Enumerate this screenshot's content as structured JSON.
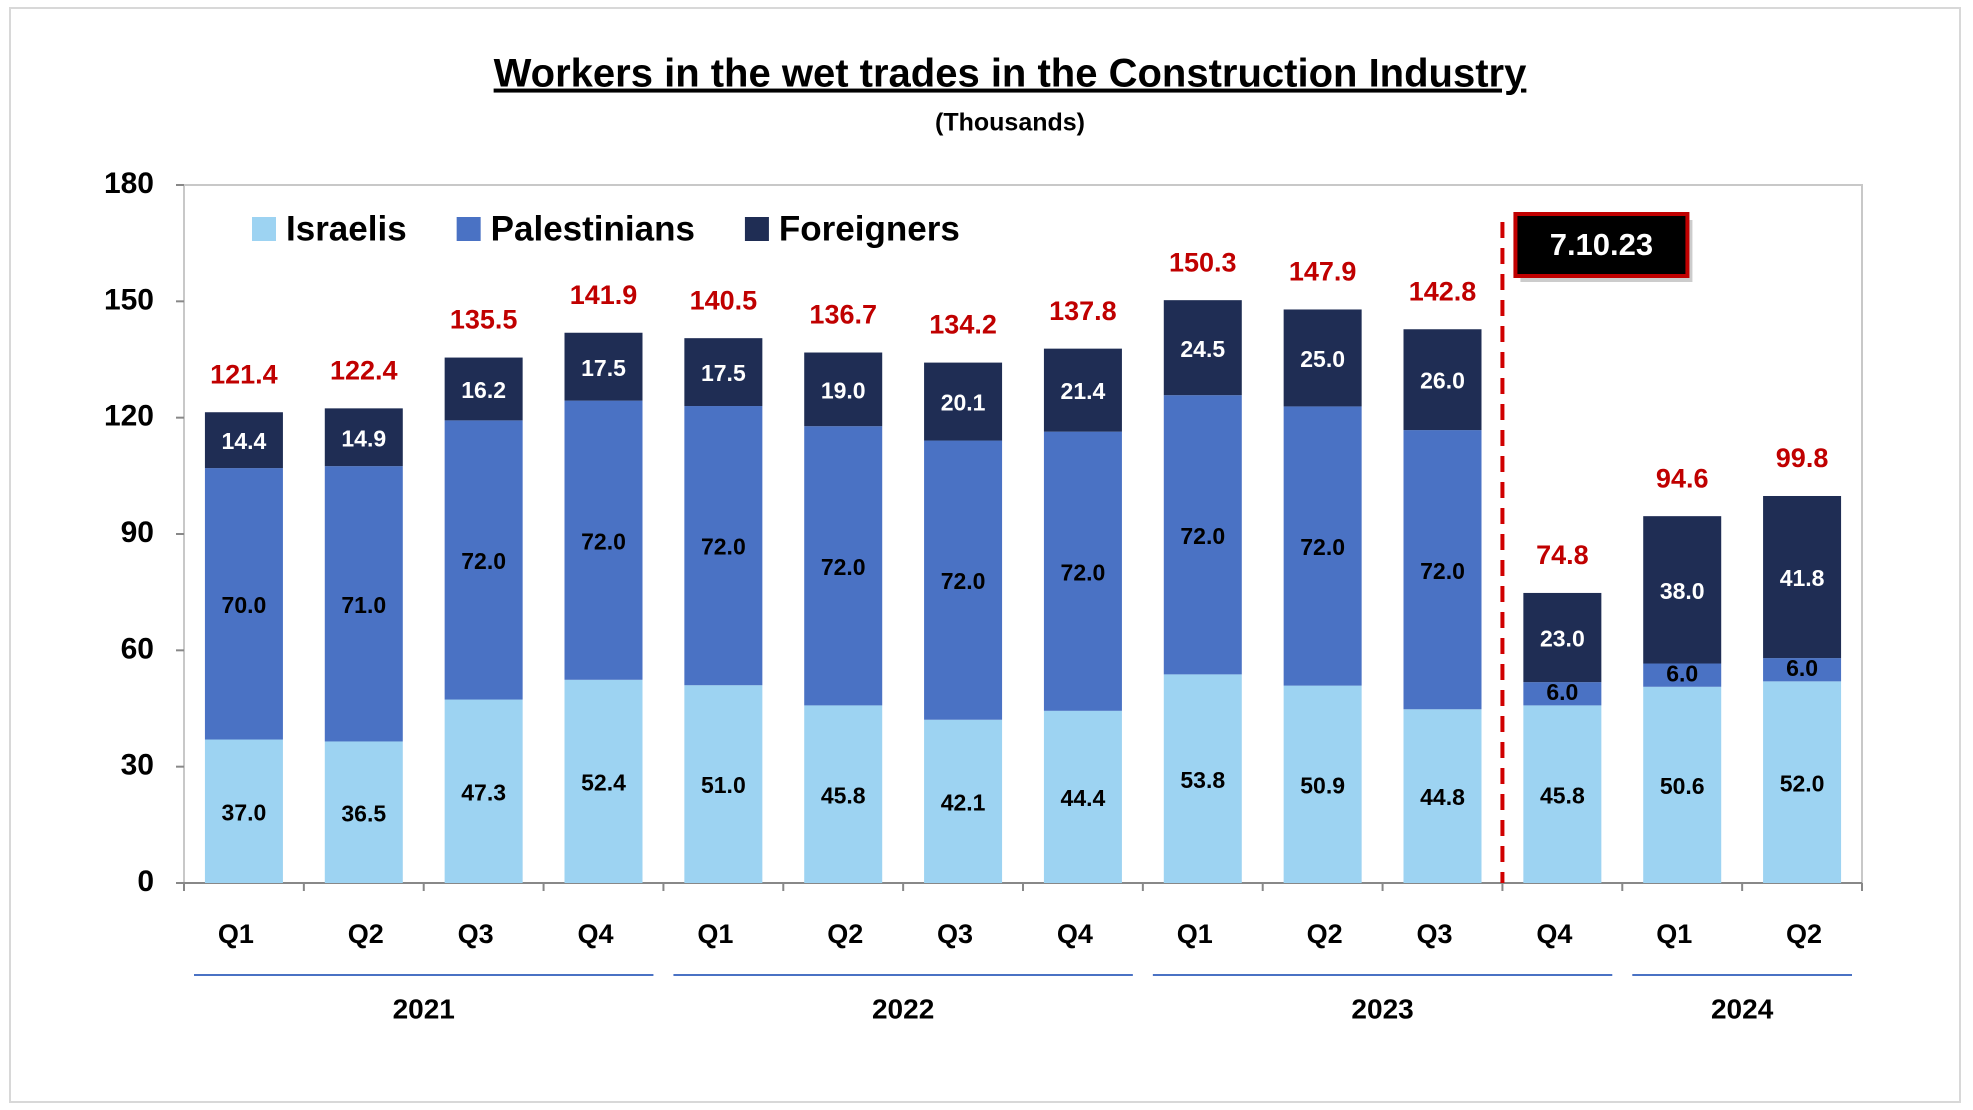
{
  "chart_data": {
    "type": "stacked_bar",
    "title": "Workers in the wet trades in the Construction Industry",
    "subtitle": "(Thousands)",
    "categories": [
      "Q1",
      "Q2",
      "Q3",
      "Q4",
      "Q1",
      "Q2",
      "Q3",
      "Q4",
      "Q1",
      "Q2",
      "Q3",
      "Q4",
      "Q1",
      "Q2"
    ],
    "groups": [
      {
        "label": "2021",
        "count": 4
      },
      {
        "label": "2022",
        "count": 4
      },
      {
        "label": "2023",
        "count": 4
      },
      {
        "label": "2024",
        "count": 2
      }
    ],
    "series": [
      {
        "name": "Israelis",
        "color": "#9dd3f2",
        "values": [
          37.0,
          36.5,
          47.3,
          52.4,
          51.0,
          45.8,
          42.1,
          44.4,
          53.8,
          50.9,
          44.8,
          45.8,
          50.6,
          52.0
        ],
        "value_labels": [
          "37.0",
          "36.5",
          "47.3",
          "52.4",
          "51.0",
          "45.8",
          "42.1",
          "44.4",
          "53.8",
          "50.9",
          "44.8",
          "45.8",
          "50.6",
          "52.0"
        ]
      },
      {
        "name": "Palestinians",
        "color": "#4a72c4",
        "values": [
          70.0,
          71.0,
          72.0,
          72.0,
          72.0,
          72.0,
          72.0,
          72.0,
          72.0,
          72.0,
          72.0,
          6.0,
          6.0,
          6.0
        ],
        "value_labels": [
          "70.0",
          "71.0",
          "72.0",
          "72.0",
          "72.0",
          "72.0",
          "72.0",
          "72.0",
          "72.0",
          "72.0",
          "72.0",
          "6.0",
          "6.0",
          "6.0"
        ]
      },
      {
        "name": "Foreigners",
        "color": "#1f2d54",
        "values": [
          14.4,
          14.9,
          16.2,
          17.5,
          17.5,
          19.0,
          20.1,
          21.4,
          24.5,
          25.0,
          26.0,
          23.0,
          38.0,
          41.8
        ],
        "value_labels": [
          "14.4",
          "14.9",
          "16.2",
          "17.5",
          "17.5",
          "19.0",
          "20.1",
          "21.4",
          "24.5",
          "25.0",
          "26.0",
          "23.0",
          "38.0",
          "41.8"
        ]
      }
    ],
    "totals": [
      121.4,
      122.4,
      135.5,
      141.9,
      140.5,
      136.7,
      134.2,
      137.8,
      150.3,
      147.9,
      142.8,
      74.8,
      94.6,
      99.8
    ],
    "annotation": "7.10.23",
    "ylim": [
      0,
      180
    ],
    "yticks": [
      0,
      30,
      60,
      90,
      120,
      150,
      180
    ],
    "grid": false,
    "legend": "top-left"
  }
}
